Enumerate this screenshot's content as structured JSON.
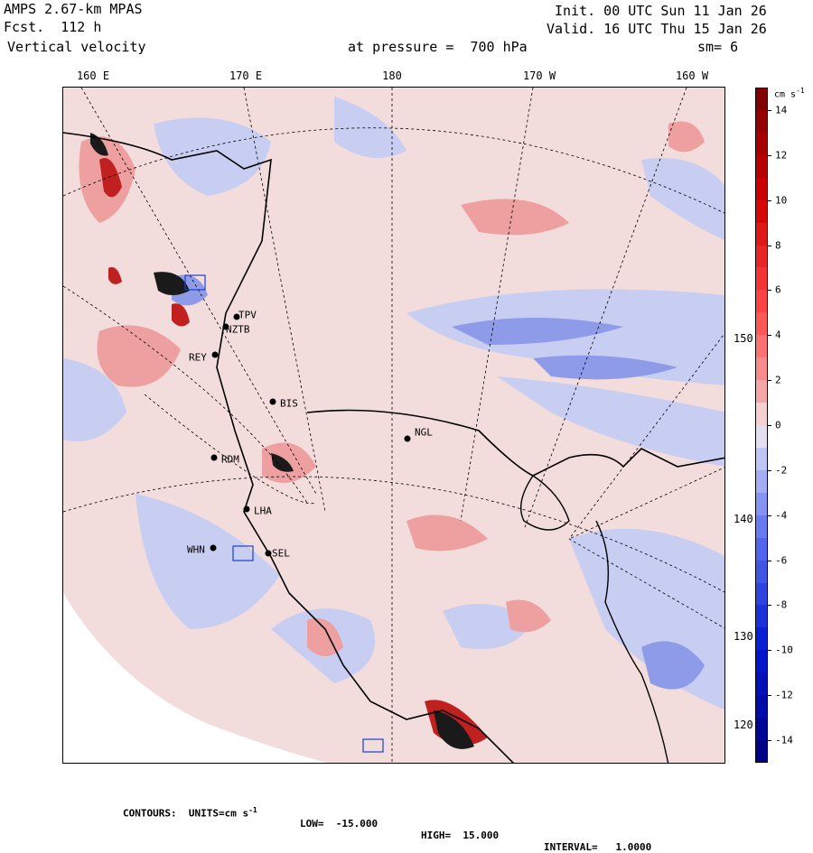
{
  "header": {
    "model": "AMPS 2.67-km MPAS",
    "forecast": "Fcst.  112 h",
    "field": "Vertical velocity",
    "init": "Init. 00 UTC Sun 11 Jan 26",
    "valid": "Valid. 16 UTC Thu 15 Jan 26",
    "pressure": "at pressure =  700 hPa",
    "smoothing": "sm= 6"
  },
  "longitude_labels": [
    "160 E",
    "170 E",
    "180",
    "170 W",
    "160 W"
  ],
  "latitude_labels": [
    "150 W",
    "140 W",
    "130 W",
    "120 W"
  ],
  "stations": [
    {
      "name": "TPV"
    },
    {
      "name": "NZTB"
    },
    {
      "name": "REY"
    },
    {
      "name": "BIS"
    },
    {
      "name": "NGL"
    },
    {
      "name": "RDM"
    },
    {
      "name": "LHA"
    },
    {
      "name": "WHN"
    },
    {
      "name": "SEL"
    }
  ],
  "colorbar": {
    "units": "cm s",
    "units_exponent": "-1",
    "tick_labels": [
      "14",
      "12",
      "10",
      "8",
      "6",
      "4",
      "2",
      "0",
      "-2",
      "-4",
      "-6",
      "-8",
      "-10",
      "-12",
      "-14"
    ],
    "colors": {
      "max": "#7a0000",
      "positive_high": "#d40000",
      "positive_mid": "#ff4a4a",
      "positive_low": "#f4b4b4",
      "zero": "#f8ecec",
      "negative_low": "#cdd2f4",
      "negative_mid": "#5a6ff0",
      "negative_high": "#0018d0",
      "min": "#000080"
    }
  },
  "footer": {
    "contours": "CONTOURS:  UNITS=cm s",
    "contours_exp": "-1",
    "low": "LOW=  -15.000",
    "high": "HIGH=  15.000",
    "interval": "INTERVAL=   1.0000"
  },
  "map_colors": {
    "background_pos": "#f3dcdc",
    "neg_light": "#c8cdf2",
    "neg_mid": "#8d9be9",
    "pos_mid": "#ee9f9f",
    "pos_dark": "#c02020",
    "dark": "#1a1a1a",
    "white_region": "#ffffff"
  }
}
